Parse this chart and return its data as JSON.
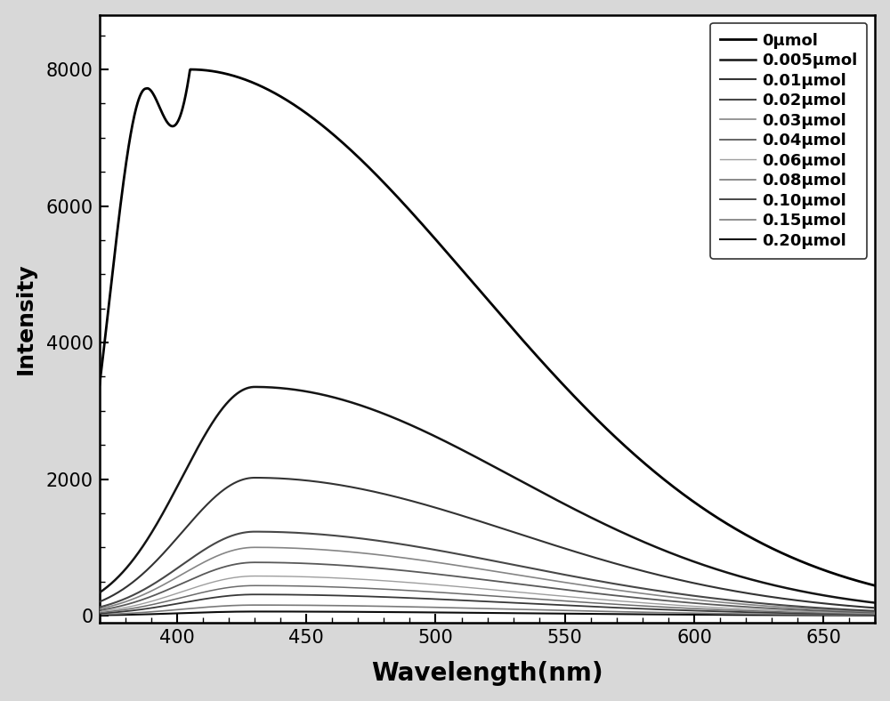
{
  "xlabel": "Wavelength(nm)",
  "ylabel": "Intensity",
  "xlim": [
    370,
    670
  ],
  "ylim": [
    -100,
    8800
  ],
  "xticks": [
    400,
    450,
    500,
    550,
    600,
    650
  ],
  "yticks": [
    0,
    2000,
    4000,
    6000,
    8000
  ],
  "legend_labels": [
    "0μmol",
    "0.005μmol",
    "0.01μmol",
    "0.02μmol",
    "0.03μmol",
    "0.04μmol",
    "0.06μmol",
    "0.08μmol",
    "0.10μmol",
    "0.15μmol",
    "0.20μmol"
  ],
  "peak_intensities": [
    8000,
    3350,
    2020,
    1230,
    1000,
    780,
    580,
    440,
    310,
    155,
    60
  ],
  "start_wavelength": 370,
  "end_wavelength": 670,
  "line_colors": [
    "#000000",
    "#111111",
    "#222222",
    "#444444",
    "#888888",
    "#555555",
    "#aaaaaa",
    "#666666",
    "#333333",
    "#777777",
    "#000000"
  ],
  "line_widths": [
    2.0,
    1.8,
    1.5,
    1.5,
    1.2,
    1.3,
    1.0,
    1.1,
    1.3,
    1.2,
    1.5
  ],
  "background_color": "#ffffff",
  "fig_facecolor": "#d8d8d8",
  "xlabel_fontsize": 20,
  "ylabel_fontsize": 18,
  "tick_fontsize": 15,
  "legend_fontsize": 13
}
